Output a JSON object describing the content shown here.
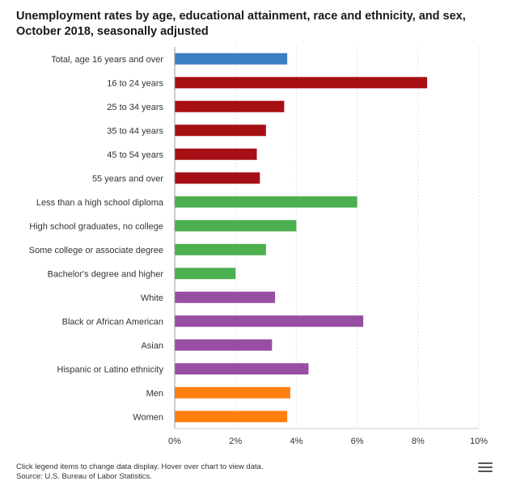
{
  "page": {
    "title_line1": "Unemployment rates by age, educational attainment, race and ethnicity, and sex,",
    "title_line2": "October 2018, seasonally adjusted",
    "footer_note": "Click legend items to change data display. Hover over chart to view data.",
    "footer_source": "Source: U.S. Bureau of Labor Statistics.",
    "menu_icon": "hamburger-menu-icon"
  },
  "chart_data": {
    "type": "bar",
    "orientation": "horizontal",
    "title": "Unemployment rates by age, educational attainment, race and ethnicity, and sex, October 2018, seasonally adjusted",
    "xlabel": "",
    "ylabel": "",
    "xlim": [
      0,
      10
    ],
    "x_ticks": [
      0,
      2,
      4,
      6,
      8,
      10
    ],
    "x_tick_suffix": "%",
    "grid": true,
    "categories": [
      "Total, age 16 years and over",
      "16 to 24 years",
      "25 to 34 years",
      "35 to 44 years",
      "45 to 54 years",
      "55 years and over",
      "Less than a high school diploma",
      "High school graduates, no college",
      "Some college or associate degree",
      "Bachelor's degree and higher",
      "White",
      "Black or African American",
      "Asian",
      "Hispanic or Latino ethnicity",
      "Men",
      "Women"
    ],
    "values": [
      3.7,
      8.3,
      3.6,
      3.0,
      2.7,
      2.8,
      6.0,
      4.0,
      3.0,
      2.0,
      3.3,
      6.2,
      3.2,
      4.4,
      3.8,
      3.7
    ],
    "groups": [
      "total",
      "age",
      "age",
      "age",
      "age",
      "age",
      "education",
      "education",
      "education",
      "education",
      "race",
      "race",
      "race",
      "race",
      "sex",
      "sex"
    ],
    "colors": {
      "total": "#3a7fbf",
      "age": "#a60f14",
      "education": "#4caf50",
      "race": "#984ea3",
      "sex": "#ff7f0e"
    }
  }
}
